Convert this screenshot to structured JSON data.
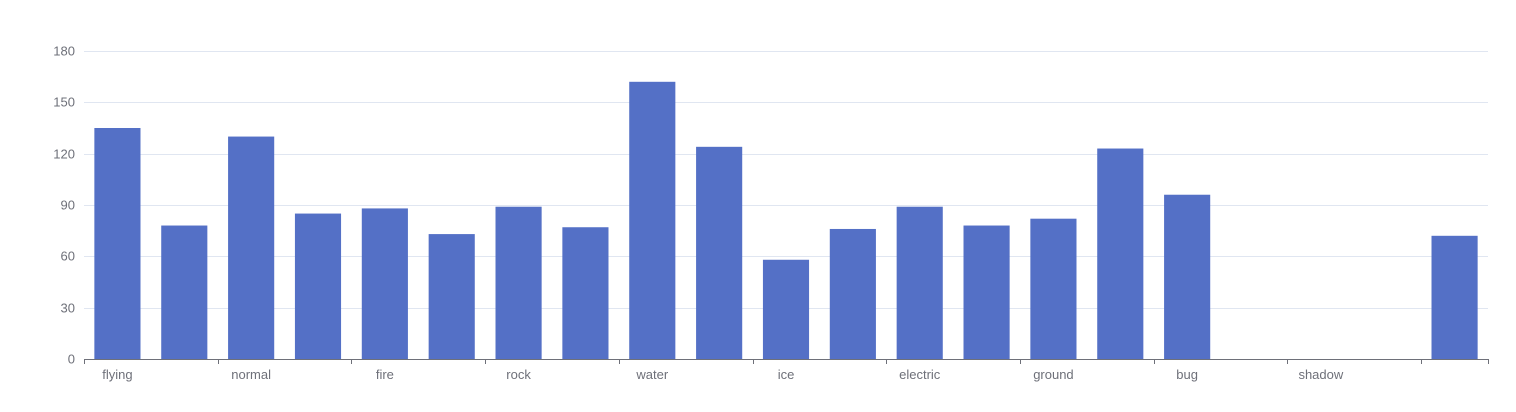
{
  "chart_data": {
    "type": "bar",
    "categories": [
      "flying",
      "",
      "normal",
      "",
      "fire",
      "",
      "rock",
      "",
      "water",
      "",
      "ice",
      "",
      "electric",
      "",
      "ground",
      "",
      "bug",
      "",
      "shadow",
      "",
      ""
    ],
    "values": [
      135,
      78,
      130,
      85,
      88,
      73,
      89,
      77,
      162,
      124,
      58,
      76,
      89,
      78,
      82,
      123,
      96,
      0,
      0,
      0,
      72
    ],
    "yticks": [
      0,
      30,
      60,
      90,
      120,
      150,
      180
    ],
    "ylim": [
      0,
      180
    ],
    "grid": true,
    "colors": {
      "bar": "#5470c6",
      "grid": "#e0e6f1",
      "axis": "#6e7079",
      "label": "#6e7079"
    }
  }
}
